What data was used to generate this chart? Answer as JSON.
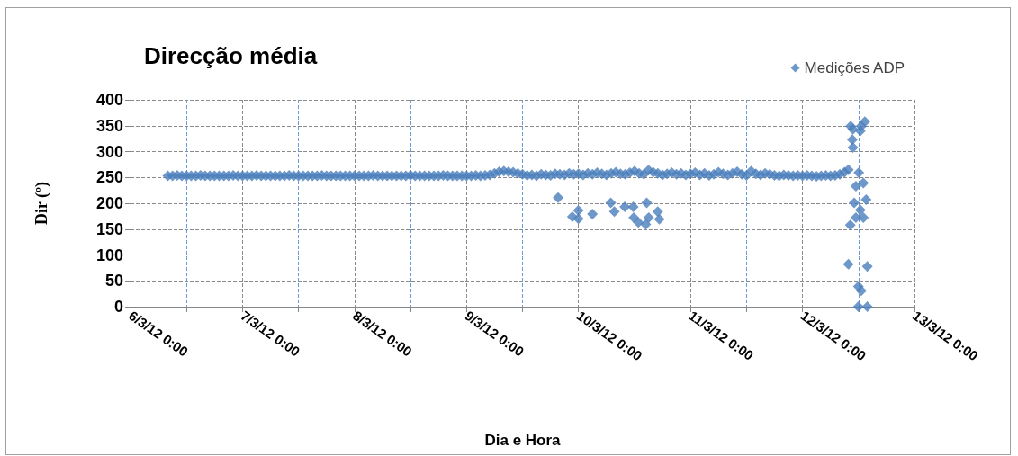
{
  "chart_data": {
    "type": "scatter",
    "title": "Direcção média",
    "xlabel": "Dia e Hora",
    "ylabel": "Dir (º)",
    "xlim": [
      "--03-06T00:00",
      "--03-13T00:00"
    ],
    "xticks": [
      {
        "value": "--03-06T00:00",
        "label": "6/3/12 0:00"
      },
      {
        "value": "--03-06T12:00",
        "label": null
      },
      {
        "value": "--03-07T00:00",
        "label": "7/3/12 0:00"
      },
      {
        "value": "--03-07T12:00",
        "label": null
      },
      {
        "value": "--03-08T00:00",
        "label": "8/3/12 0:00"
      },
      {
        "value": "--03-08T12:00",
        "label": null
      },
      {
        "value": "--03-09T00:00",
        "label": "9/3/12 0:00"
      },
      {
        "value": "--03-09T12:00",
        "label": null
      },
      {
        "value": "--03-10T00:00",
        "label": "10/3/12 0:00"
      },
      {
        "value": "--03-10T12:00",
        "label": null
      },
      {
        "value": "--03-11T00:00",
        "label": "11/3/12 0:00"
      },
      {
        "value": "--03-11T12:00",
        "label": null
      },
      {
        "value": "--03-12T00:00",
        "label": "12/3/12 0:00"
      },
      {
        "value": "--03-12T12:00",
        "label": null
      },
      {
        "value": "--03-13T00:00",
        "label": "13/3/12 0:00"
      }
    ],
    "ylim": [
      0,
      400
    ],
    "yticks": [
      0,
      50,
      100,
      150,
      200,
      250,
      300,
      350,
      400
    ],
    "grid": true,
    "legend": "top right",
    "marker": "diamond",
    "series": [
      {
        "name": "Medições ADP",
        "color": "#4a7ebb",
        "x": [
          "--03-06T08:00",
          "--03-06T09:00",
          "--03-06T10:00",
          "--03-06T11:00",
          "--03-06T12:00",
          "--03-06T13:00",
          "--03-06T14:00",
          "--03-06T15:00",
          "--03-06T16:00",
          "--03-06T17:00",
          "--03-06T18:00",
          "--03-06T19:00",
          "--03-06T20:00",
          "--03-06T21:00",
          "--03-06T22:00",
          "--03-06T23:00",
          "--03-07T00:00",
          "--03-07T01:00",
          "--03-07T02:00",
          "--03-07T03:00",
          "--03-07T04:00",
          "--03-07T05:00",
          "--03-07T06:00",
          "--03-07T07:00",
          "--03-07T08:00",
          "--03-07T09:00",
          "--03-07T10:00",
          "--03-07T11:00",
          "--03-07T12:00",
          "--03-07T13:00",
          "--03-07T14:00",
          "--03-07T15:00",
          "--03-07T16:00",
          "--03-07T17:00",
          "--03-07T18:00",
          "--03-07T19:00",
          "--03-07T20:00",
          "--03-07T21:00",
          "--03-07T22:00",
          "--03-07T23:00",
          "--03-08T00:00",
          "--03-08T01:00",
          "--03-08T02:00",
          "--03-08T03:00",
          "--03-08T04:00",
          "--03-08T05:00",
          "--03-08T06:00",
          "--03-08T07:00",
          "--03-08T08:00",
          "--03-08T09:00",
          "--03-08T10:00",
          "--03-08T11:00",
          "--03-08T12:00",
          "--03-08T13:00",
          "--03-08T14:00",
          "--03-08T15:00",
          "--03-08T16:00",
          "--03-08T17:00",
          "--03-08T18:00",
          "--03-08T19:00",
          "--03-08T20:00",
          "--03-08T21:00",
          "--03-08T22:00",
          "--03-08T23:00",
          "--03-09T00:00",
          "--03-09T01:00",
          "--03-09T02:00",
          "--03-09T03:00",
          "--03-09T04:00",
          "--03-09T05:00",
          "--03-09T06:00",
          "--03-09T07:00",
          "--03-09T08:00",
          "--03-09T09:00",
          "--03-09T10:00",
          "--03-09T11:00",
          "--03-09T12:00",
          "--03-09T13:00",
          "--03-09T14:00",
          "--03-09T15:00",
          "--03-09T16:00",
          "--03-09T17:00",
          "--03-09T18:00",
          "--03-09T19:00",
          "--03-09T20:00",
          "--03-09T21:00",
          "--03-09T22:00",
          "--03-09T23:00",
          "--03-10T00:00",
          "--03-10T01:00",
          "--03-10T02:00",
          "--03-10T03:00",
          "--03-10T04:00",
          "--03-10T05:00",
          "--03-10T06:00",
          "--03-10T07:00",
          "--03-10T08:00",
          "--03-10T09:00",
          "--03-10T10:00",
          "--03-10T11:00",
          "--03-10T12:00",
          "--03-10T13:00",
          "--03-10T14:00",
          "--03-10T15:00",
          "--03-10T16:00",
          "--03-10T17:00",
          "--03-10T18:00",
          "--03-10T19:00",
          "--03-10T20:00",
          "--03-10T21:00",
          "--03-10T22:00",
          "--03-10T23:00",
          "--03-11T00:00",
          "--03-11T01:00",
          "--03-11T02:00",
          "--03-11T03:00",
          "--03-11T04:00",
          "--03-11T05:00",
          "--03-11T06:00",
          "--03-11T07:00",
          "--03-11T08:00",
          "--03-11T09:00",
          "--03-11T10:00",
          "--03-11T11:00",
          "--03-11T12:00",
          "--03-11T13:00",
          "--03-11T14:00",
          "--03-11T15:00",
          "--03-11T16:00",
          "--03-11T17:00",
          "--03-11T18:00",
          "--03-11T19:00",
          "--03-11T20:00",
          "--03-11T21:00",
          "--03-11T22:00",
          "--03-11T23:00",
          "--03-12T00:00",
          "--03-12T01:00",
          "--03-12T02:00",
          "--03-12T03:00",
          "--03-12T04:00",
          "--03-12T05:00",
          "--03-12T06:00",
          "--03-12T07:00",
          "--03-12T08:00",
          "--03-12T09:00",
          "--03-09T19:38",
          "--03-09T22:41",
          "--03-09T23:58",
          "--03-09T23:59",
          "--03-10T02:59",
          "--03-10T06:55",
          "--03-10T07:41",
          "--03-10T09:55",
          "--03-10T11:44",
          "--03-10T14:37",
          "--03-10T11:51",
          "--03-10T12:49",
          "--03-10T14:25",
          "--03-10T15:03",
          "--03-10T16:59",
          "--03-10T17:20",
          "--03-12T10:20",
          "--03-12T10:48",
          "--03-12T13:22",
          "--03-12T12:36",
          "--03-12T12:24",
          "--03-12T10:41",
          "--03-12T10:48",
          "--03-12T09:50",
          "--03-12T12:04",
          "--03-12T11:27",
          "--03-12T13:03",
          "--03-12T11:05",
          "--03-12T13:39",
          "--03-12T12:24",
          "--03-12T11:27",
          "--03-12T13:03",
          "--03-12T10:15",
          "--03-12T09:50",
          "--03-12T13:54",
          "--03-12T11:59",
          "--03-12T12:36",
          "--03-12T11:59",
          "--03-12T13:54"
        ],
        "values": [
          253,
          253,
          254,
          253,
          253,
          253,
          253,
          254,
          253,
          253,
          253,
          253,
          253,
          253,
          254,
          253,
          253,
          253,
          253,
          254,
          253,
          253,
          253,
          253,
          253,
          253,
          254,
          253,
          253,
          253,
          253,
          253,
          253,
          254,
          253,
          253,
          253,
          253,
          253,
          253,
          253,
          253,
          253,
          253,
          254,
          253,
          253,
          253,
          253,
          253,
          253,
          253,
          254,
          253,
          253,
          253,
          253,
          253,
          253,
          254,
          253,
          253,
          253,
          253,
          253,
          253,
          254,
          253,
          254,
          255,
          258,
          261,
          262,
          261,
          260,
          258,
          256,
          254,
          255,
          253,
          256,
          255,
          254,
          257,
          256,
          255,
          258,
          256,
          257,
          255,
          258,
          256,
          259,
          257,
          255,
          258,
          260,
          257,
          256,
          259,
          262,
          258,
          256,
          264,
          260,
          258,
          255,
          257,
          259,
          256,
          258,
          255,
          257,
          259,
          255,
          258,
          254,
          256,
          260,
          257,
          255,
          258,
          261,
          256,
          254,
          262,
          257,
          255,
          258,
          256,
          254,
          253,
          255,
          254,
          253,
          254,
          253,
          254,
          253,
          252,
          253,
          254,
          253,
          254,
          256,
          260,
          211,
          174,
          186,
          170,
          179,
          201,
          184,
          193,
          193,
          201,
          172,
          163,
          159,
          172,
          184,
          169,
          349,
          343,
          358,
          349,
          340,
          323,
          308,
          265,
          259,
          233,
          239,
          201,
          207,
          187,
          172,
          172,
          158,
          82,
          78,
          39,
          31,
          0,
          0
        ]
      }
    ]
  }
}
